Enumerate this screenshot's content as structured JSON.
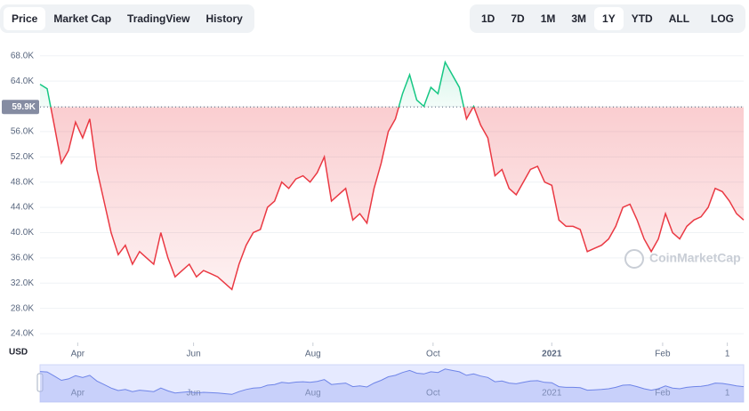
{
  "controls": {
    "tabs": [
      "Price",
      "Market Cap",
      "TradingView",
      "History"
    ],
    "ranges": [
      "1D",
      "7D",
      "1M",
      "3M",
      "1Y",
      "YTD",
      "ALL"
    ],
    "log": "LOG"
  },
  "chart_data": {
    "type": "line",
    "currency": "USD",
    "watermark": "CoinMarketCap",
    "values": [
      63500,
      62800,
      57000,
      51000,
      53000,
      57500,
      55000,
      58000,
      50000,
      45000,
      40000,
      36500,
      38000,
      35000,
      37000,
      36000,
      35000,
      40000,
      36000,
      33000,
      34000,
      35000,
      33000,
      34000,
      33500,
      33000,
      32000,
      31000,
      35000,
      38000,
      40000,
      40500,
      44000,
      45000,
      48000,
      47000,
      48500,
      49000,
      48000,
      49500,
      52000,
      45000,
      46000,
      47000,
      42000,
      43000,
      41500,
      47000,
      51000,
      56000,
      58000,
      62000,
      65000,
      61000,
      60000,
      63000,
      62000,
      67000,
      65000,
      63000,
      58000,
      60000,
      57000,
      55000,
      49000,
      50000,
      47000,
      46000,
      48000,
      50000,
      50500,
      48000,
      47500,
      42000,
      41000,
      41000,
      40500,
      37000,
      37500,
      38000,
      39000,
      41000,
      44000,
      44500,
      42000,
      39000,
      37000,
      39000,
      43000,
      40000,
      39000,
      41000,
      42000,
      42500,
      44000,
      47000,
      46500,
      45000,
      43000,
      42000
    ],
    "reference": {
      "value": 59900,
      "label": "59.9K"
    },
    "up_color": "#16c784",
    "down_color": "#ea3943",
    "ylim": [
      22600,
      70500
    ],
    "yticks": [
      {
        "value": 24000,
        "label": "24.0K"
      },
      {
        "value": 28000,
        "label": "28.0K"
      },
      {
        "value": 32000,
        "label": "32.0K"
      },
      {
        "value": 36000,
        "label": "36.0K"
      },
      {
        "value": 40000,
        "label": "40.0K"
      },
      {
        "value": 44000,
        "label": "44.0K"
      },
      {
        "value": 48000,
        "label": "48.0K"
      },
      {
        "value": 52000,
        "label": "52.0K"
      },
      {
        "value": 56000,
        "label": "56.0K"
      },
      {
        "value": 60000,
        "label": "60.0K"
      },
      {
        "value": 64000,
        "label": "64.0K"
      },
      {
        "value": 68000,
        "label": "68.0K"
      }
    ],
    "xlim": [
      0,
      99
    ],
    "xticks": [
      {
        "value": 5.3,
        "label": "Apr"
      },
      {
        "value": 21.6,
        "label": "Jun"
      },
      {
        "value": 38.4,
        "label": "Aug"
      },
      {
        "value": 55.3,
        "label": "Oct"
      },
      {
        "value": 72,
        "label": "2021"
      },
      {
        "value": 87.6,
        "label": "Feb"
      },
      {
        "value": 96.7,
        "label": "1"
      }
    ],
    "grid": true
  }
}
